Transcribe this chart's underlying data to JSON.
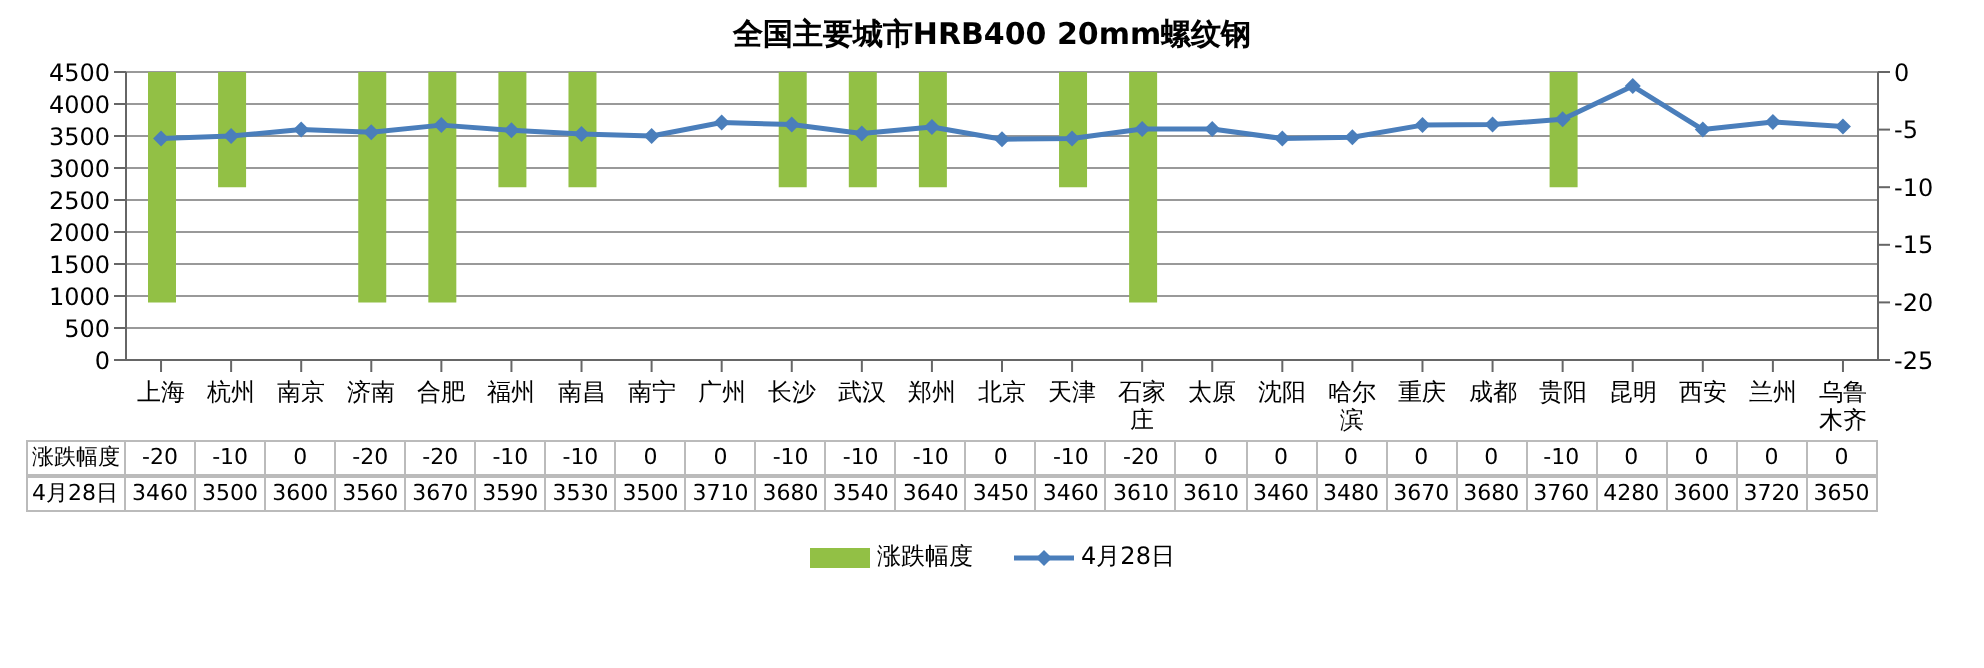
{
  "chart_data": {
    "type": "bar",
    "title": "全国主要城市HRB400 20mm螺纹钢",
    "categories": [
      "上海",
      "杭州",
      "南京",
      "济南",
      "合肥",
      "福州",
      "南昌",
      "南宁",
      "广州",
      "长沙",
      "武汉",
      "郑州",
      "北京",
      "天津",
      "石家庄",
      "太原",
      "沈阳",
      "哈尔滨",
      "重庆",
      "成都",
      "贵阳",
      "昆明",
      "西安",
      "兰州",
      "乌鲁木齐"
    ],
    "series": [
      {
        "name": "涨跌幅度",
        "axis": "y2",
        "color": "#92c045",
        "values": [
          -20,
          -10,
          0,
          -20,
          -20,
          -10,
          -10,
          0,
          0,
          -10,
          -10,
          -10,
          0,
          -10,
          -20,
          0,
          0,
          0,
          0,
          0,
          -10,
          0,
          0,
          0,
          0
        ]
      },
      {
        "name": "4月28日",
        "type": "line",
        "color": "#4a7ebb",
        "marker": "diamond",
        "values": [
          3460,
          3500,
          3600,
          3560,
          3670,
          3590,
          3530,
          3500,
          3710,
          3680,
          3540,
          3640,
          3450,
          3460,
          3610,
          3610,
          3460,
          3480,
          3670,
          3680,
          3760,
          4280,
          3600,
          3720,
          3650
        ]
      }
    ],
    "ylim": [
      0,
      4500
    ],
    "yticks": [
      0,
      500,
      1000,
      1500,
      2000,
      2500,
      3000,
      3500,
      4000,
      4500
    ],
    "y2lim": [
      -25,
      0
    ],
    "y2ticks": [
      0,
      -5,
      -10,
      -15,
      -20,
      -25
    ],
    "grid": "y",
    "legend": "bottom",
    "data_labels": true
  }
}
